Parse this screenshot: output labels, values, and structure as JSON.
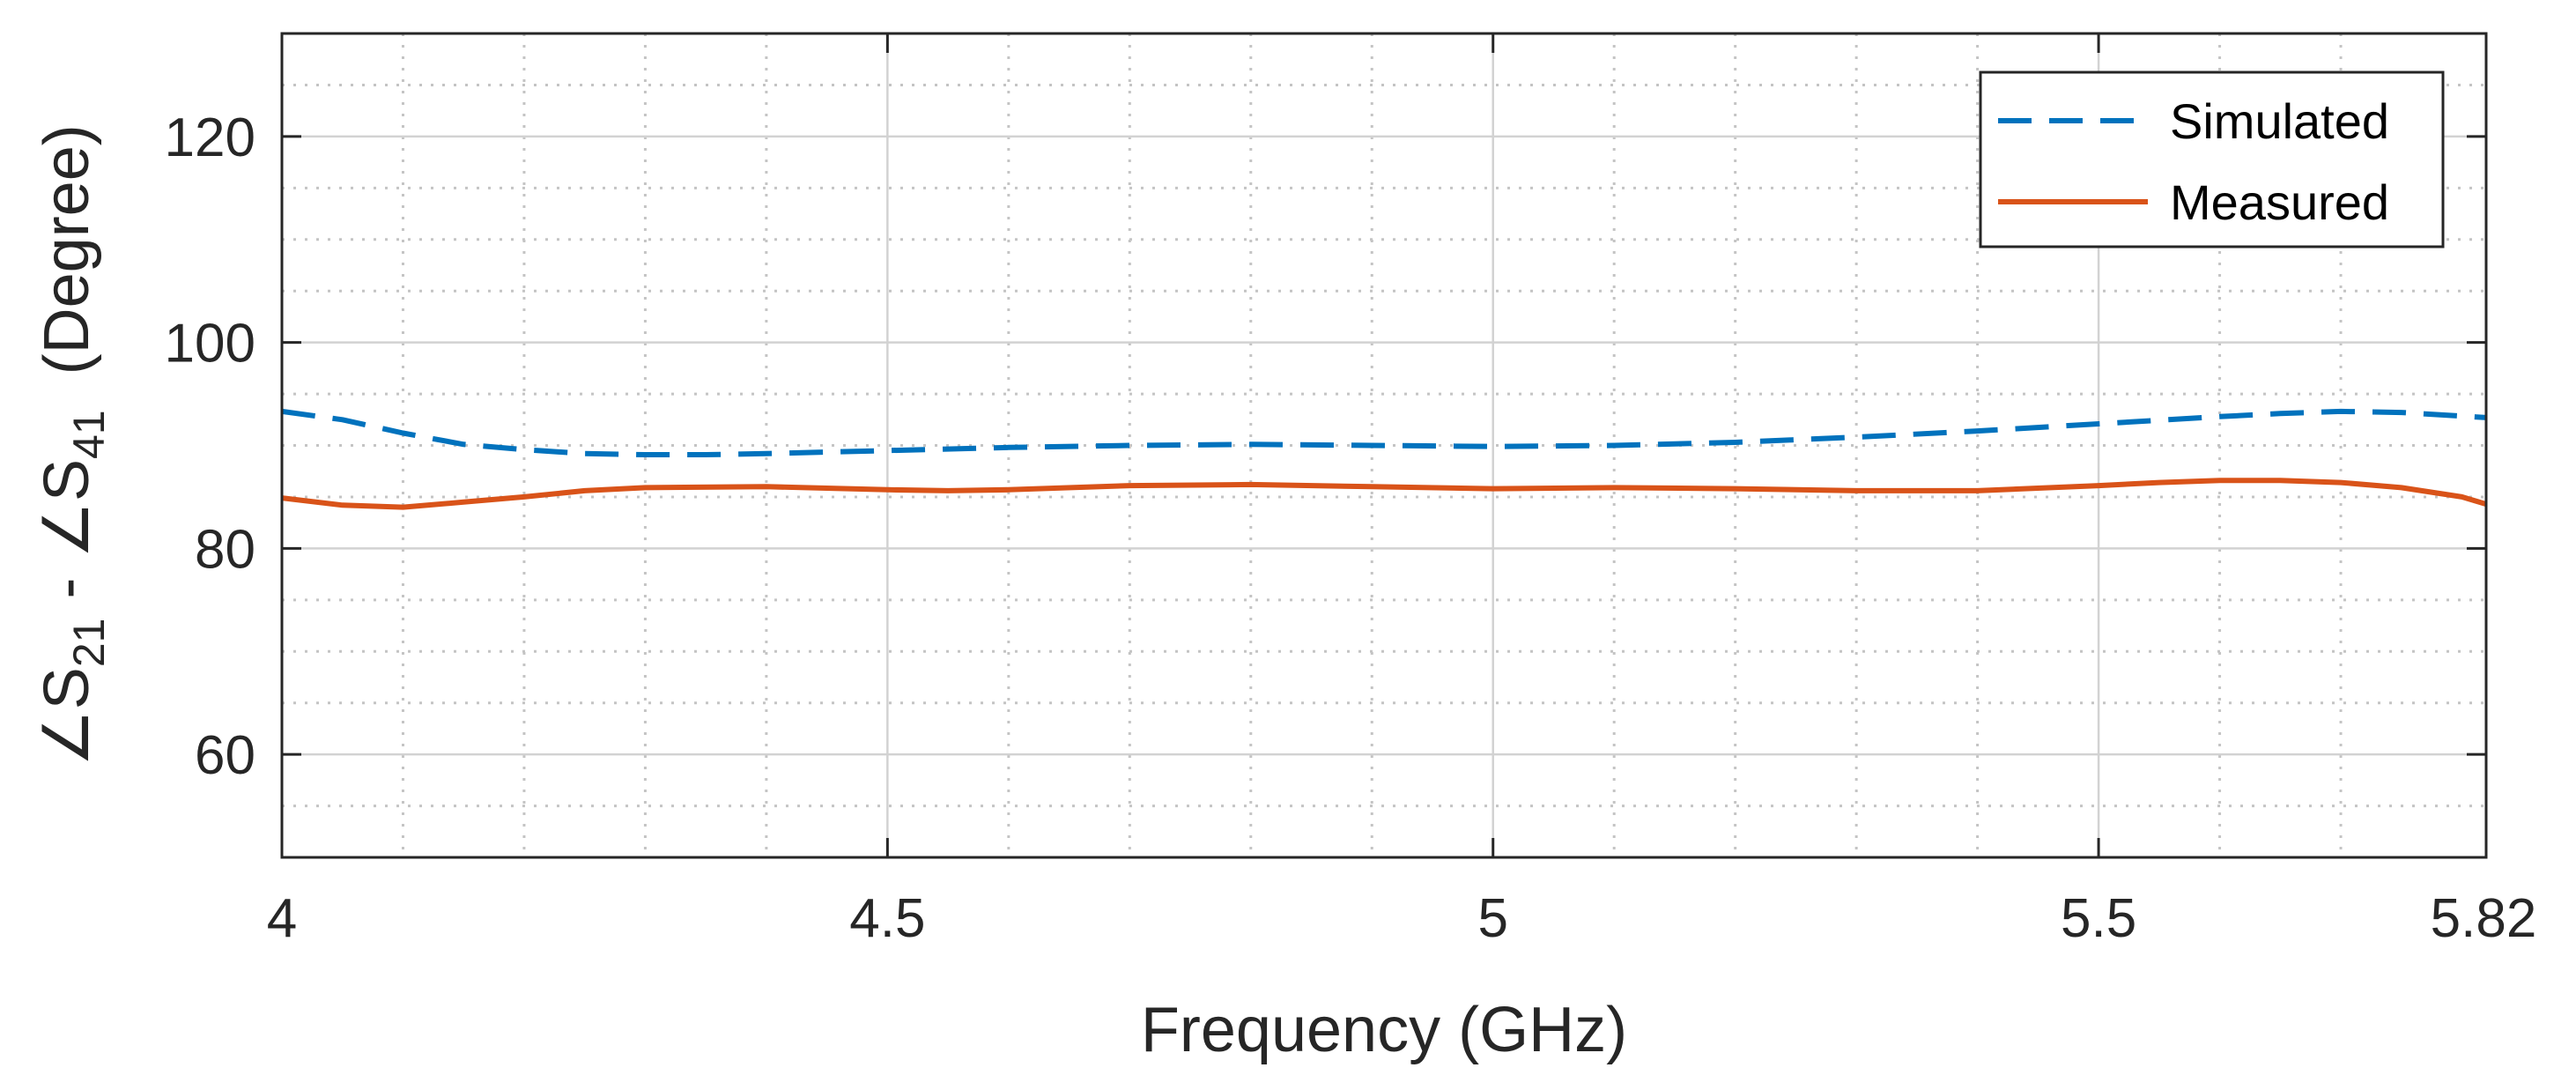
{
  "chart_data": {
    "type": "line",
    "xlabel": "Frequency (GHz)",
    "ylabel": {
      "angle_symbol": "∠",
      "s1": "S",
      "sub1": "21",
      "minus": "-",
      "s2": "S",
      "sub2": "41",
      "unit": "(Degree)"
    },
    "xlim": [
      4,
      5.82
    ],
    "ylim": [
      50,
      130
    ],
    "xticks": [
      4,
      4.5,
      5,
      5.5,
      5.82
    ],
    "xtick_labels": [
      "4",
      "4.5",
      "5",
      "5.5",
      "5.82"
    ],
    "yticks": [
      60,
      80,
      100,
      120
    ],
    "ytick_labels": [
      "60",
      "80",
      "100",
      "120"
    ],
    "minor_xticks": [
      4.1,
      4.2,
      4.3,
      4.4,
      4.6,
      4.7,
      4.8,
      4.9,
      5.1,
      5.2,
      5.3,
      5.4,
      5.6,
      5.7
    ],
    "minor_yticks": [
      55,
      65,
      70,
      75,
      85,
      90,
      95,
      105,
      110,
      115,
      125
    ],
    "grid": true,
    "legend_position": "top-right",
    "series": [
      {
        "name": "Simulated",
        "color": "#0072BD",
        "style": "dashed",
        "x": [
          4.0,
          4.05,
          4.1,
          4.15,
          4.2,
          4.25,
          4.3,
          4.35,
          4.4,
          4.5,
          4.6,
          4.7,
          4.8,
          4.9,
          5.0,
          5.1,
          5.2,
          5.3,
          5.4,
          5.5,
          5.6,
          5.65,
          5.7,
          5.75,
          5.82
        ],
        "y": [
          93.3,
          92.5,
          91.2,
          90.1,
          89.6,
          89.2,
          89.1,
          89.1,
          89.2,
          89.5,
          89.8,
          90.0,
          90.1,
          90.0,
          89.9,
          90.0,
          90.3,
          90.8,
          91.4,
          92.1,
          92.8,
          93.1,
          93.3,
          93.2,
          92.7
        ]
      },
      {
        "name": "Measured",
        "color": "#D95319",
        "style": "solid",
        "x": [
          4.0,
          4.05,
          4.1,
          4.15,
          4.2,
          4.25,
          4.3,
          4.4,
          4.5,
          4.55,
          4.6,
          4.7,
          4.8,
          4.9,
          5.0,
          5.1,
          5.2,
          5.3,
          5.4,
          5.5,
          5.55,
          5.6,
          5.65,
          5.7,
          5.75,
          5.8,
          5.82
        ],
        "y": [
          84.9,
          84.2,
          84.0,
          84.5,
          85.0,
          85.6,
          85.9,
          86.0,
          85.7,
          85.6,
          85.7,
          86.1,
          86.2,
          86.0,
          85.8,
          85.9,
          85.8,
          85.6,
          85.6,
          86.1,
          86.4,
          86.6,
          86.6,
          86.4,
          85.9,
          85.0,
          84.3
        ]
      }
    ]
  }
}
